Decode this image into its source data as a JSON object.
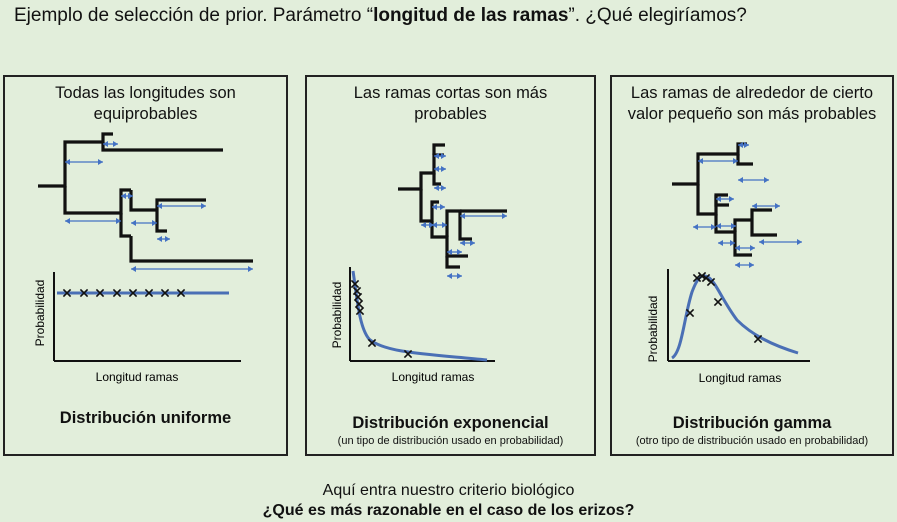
{
  "title": {
    "prefix": "Ejemplo de selección de prior. Parámetro “",
    "bold": "longitud de las ramas",
    "suffix": "”. ¿Qué elegiríamos?"
  },
  "panels": [
    {
      "heading": "Todas las longitudes son equiprobables",
      "distribution": "Distribución uniforme",
      "note": "",
      "ylabel": "Probabilidad",
      "xlabel": "Longitud ramas"
    },
    {
      "heading": "Las ramas cortas son más probables",
      "distribution": "Distribución exponencial",
      "note": "(un tipo de distribución usado en probabilidad)",
      "ylabel": "Probabilidad",
      "xlabel": "Longitud ramas"
    },
    {
      "heading": "Las ramas de alrededor de cierto valor pequeño son más probables",
      "distribution": "Distribución gamma",
      "note": "(otro tipo de distribución usado en probabilidad)",
      "ylabel": "Probabilidad",
      "xlabel": "Longitud ramas"
    }
  ],
  "footer": {
    "line1": "Aquí entra nuestro criterio biológico",
    "line2": "¿Qué es más razonable en el caso de los erizos?"
  },
  "colors": {
    "background": "#e2eedb",
    "curve": "#4a6fb5",
    "arrow": "#4472c4",
    "ink": "#111111"
  },
  "chart_data": [
    {
      "type": "line",
      "shape": "uniform",
      "marker": "x",
      "markers": 8,
      "axis_ticks": "none"
    },
    {
      "type": "line",
      "shape": "exponential",
      "marker": "x",
      "markers": 7,
      "axis_ticks": "none"
    },
    {
      "type": "line",
      "shape": "gamma",
      "marker": "x",
      "markers": 7,
      "axis_ticks": "none"
    }
  ]
}
